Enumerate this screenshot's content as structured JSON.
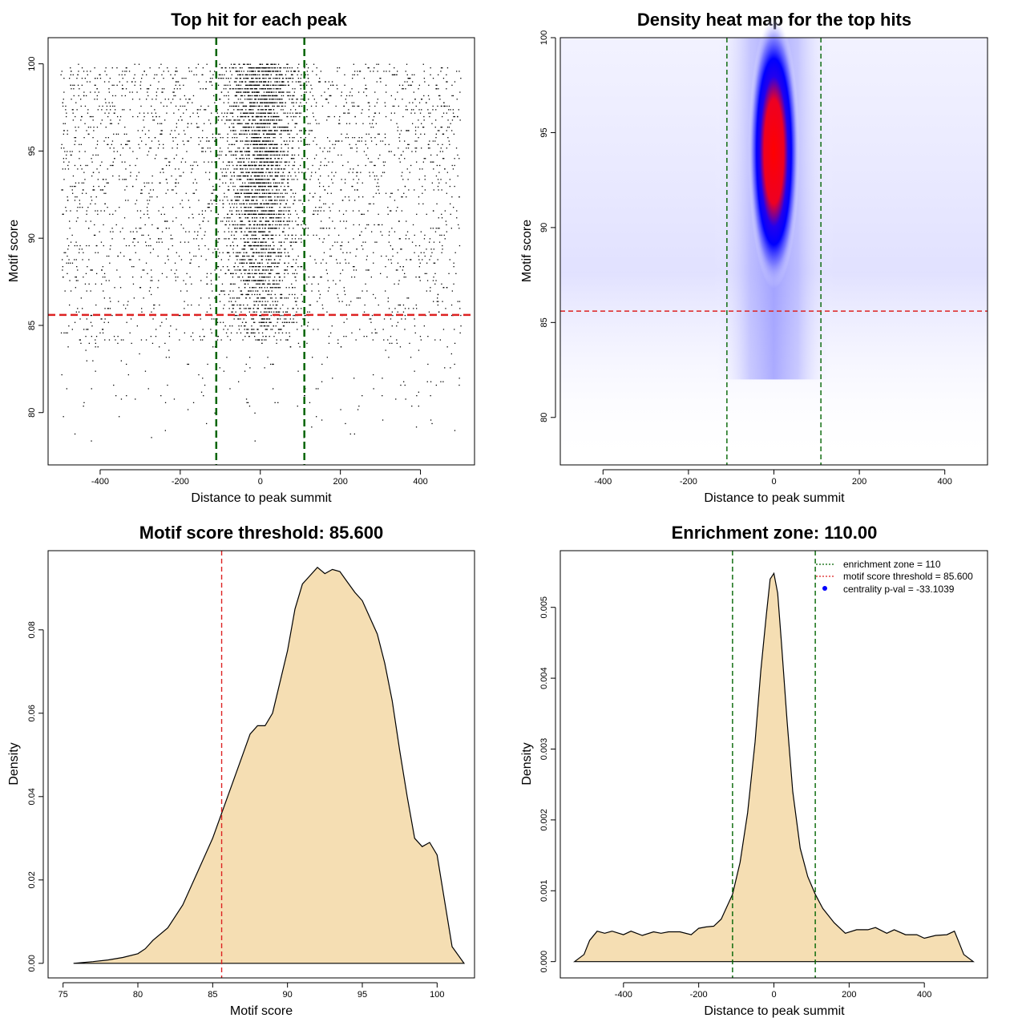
{
  "chart_data": [
    {
      "type": "scatter",
      "title": "Top hit for each peak",
      "xlabel": "Distance to peak summit",
      "ylabel": "Motif score",
      "xlim": [
        -530,
        535
      ],
      "ylim": [
        77,
        101.5
      ],
      "xticks": [
        -400,
        -200,
        0,
        200,
        400
      ],
      "yticks": [
        80,
        85,
        90,
        95,
        100
      ],
      "xtick_labels": [
        "-400",
        "-200",
        "0",
        "200",
        "400"
      ],
      "ytick_labels": [
        "80",
        "85",
        "90",
        "95",
        "100"
      ],
      "points": {
        "count": 6000,
        "background_x_range": [
          -500,
          500
        ],
        "background_y_range": [
          78,
          100
        ],
        "central_x_center": 0,
        "central_x_sd": 45,
        "central_y_range": [
          84,
          100
        ],
        "color": "#000000"
      },
      "vlines": [
        -110,
        110
      ],
      "vline_color": "#006400",
      "hline": 85.6,
      "hline_color": "#dd2222"
    },
    {
      "type": "heatmap",
      "title": "Density heat map for the top hits",
      "xlabel": "Distance to peak summit",
      "ylabel": "Motif score",
      "xlim": [
        -500,
        500
      ],
      "ylim": [
        77.5,
        100
      ],
      "xticks": [
        -400,
        -200,
        0,
        200,
        400
      ],
      "yticks": [
        80,
        85,
        90,
        95,
        100
      ],
      "xtick_labels": [
        "-400",
        "-200",
        "0",
        "200",
        "400"
      ],
      "ytick_labels": [
        "80",
        "85",
        "90",
        "95",
        "100"
      ],
      "hotspot": {
        "x": 0,
        "y": 94,
        "x_spread": 60,
        "y_spread_low": 6,
        "y_spread_high": 4
      },
      "colors": [
        "#ffffff",
        "#0000ff",
        "#ff0000"
      ],
      "vlines": [
        -110,
        110
      ],
      "vline_color": "#006400",
      "hline": 85.6,
      "hline_color": "#dd2222"
    },
    {
      "type": "area",
      "title": "Motif score threshold: 85.600",
      "xlabel": "Motif score",
      "ylabel": "Density",
      "xlim": [
        74,
        102.5
      ],
      "ylim": [
        -0.0035,
        0.099
      ],
      "xticks": [
        75,
        80,
        85,
        90,
        95,
        100
      ],
      "yticks": [
        0,
        0.02,
        0.04,
        0.06,
        0.08
      ],
      "xtick_labels": [
        "75",
        "80",
        "85",
        "90",
        "95",
        "100"
      ],
      "ytick_labels": [
        "0.00",
        "0.02",
        "0.04",
        "0.06",
        "0.08"
      ],
      "x": [
        75.7,
        77,
        78,
        79,
        80,
        80.5,
        81,
        82,
        83,
        84,
        85,
        86,
        87,
        87.5,
        88,
        88.5,
        89,
        90,
        90.5,
        91,
        92,
        92.5,
        93,
        93.5,
        94,
        94.5,
        95,
        96,
        96.5,
        97,
        97.5,
        98,
        98.5,
        99,
        99.5,
        100,
        101,
        101.8
      ],
      "y": [
        0,
        0.0004,
        0.0008,
        0.0014,
        0.0023,
        0.0035,
        0.0055,
        0.0085,
        0.014,
        0.022,
        0.03,
        0.04,
        0.05,
        0.055,
        0.057,
        0.057,
        0.06,
        0.075,
        0.085,
        0.091,
        0.095,
        0.0935,
        0.0945,
        0.094,
        0.0915,
        0.089,
        0.087,
        0.079,
        0.072,
        0.063,
        0.051,
        0.04,
        0.03,
        0.028,
        0.029,
        0.026,
        0.004,
        0
      ],
      "fill": "#f5deb3",
      "vlines": [
        85.6
      ],
      "vline_color": "#dd2222"
    },
    {
      "type": "area",
      "title": "Enrichment zone: 110.00",
      "xlabel": "Distance to peak summit",
      "ylabel": "Density",
      "xlim": [
        -568,
        568
      ],
      "ylim": [
        -0.00023,
        0.0058
      ],
      "xticks": [
        -400,
        -200,
        0,
        200,
        400
      ],
      "yticks": [
        0,
        0.001,
        0.002,
        0.003,
        0.004,
        0.005
      ],
      "xtick_labels": [
        "-400",
        "-200",
        "0",
        "200",
        "400"
      ],
      "ytick_labels": [
        "0.000",
        "0.001",
        "0.002",
        "0.003",
        "0.004",
        "0.005"
      ],
      "x": [
        -530,
        -505,
        -490,
        -470,
        -450,
        -430,
        -400,
        -380,
        -350,
        -320,
        -300,
        -280,
        -250,
        -220,
        -200,
        -180,
        -160,
        -140,
        -110,
        -90,
        -70,
        -50,
        -35,
        -20,
        -10,
        0,
        10,
        20,
        35,
        50,
        70,
        90,
        110,
        130,
        160,
        190,
        220,
        250,
        270,
        300,
        320,
        350,
        380,
        400,
        430,
        460,
        480,
        490,
        505,
        530
      ],
      "y": [
        0,
        0.0001,
        0.0003,
        0.00043,
        0.0004,
        0.00043,
        0.00038,
        0.00043,
        0.00037,
        0.00042,
        0.0004,
        0.00042,
        0.00042,
        0.00038,
        0.00047,
        0.00049,
        0.0005,
        0.0006,
        0.00095,
        0.0014,
        0.0021,
        0.0031,
        0.0041,
        0.0049,
        0.0054,
        0.00548,
        0.0052,
        0.0045,
        0.0034,
        0.0024,
        0.0016,
        0.0012,
        0.00095,
        0.00075,
        0.00055,
        0.0004,
        0.00045,
        0.00045,
        0.00048,
        0.0004,
        0.00045,
        0.00038,
        0.00038,
        0.00033,
        0.00037,
        0.00038,
        0.00043,
        0.0003,
        0.0001,
        0
      ],
      "fill": "#f5deb3",
      "vlines": [
        -110,
        110
      ],
      "vline_color": "#006400",
      "legend": {
        "placement": "top-right",
        "entries": [
          {
            "label": "enrichment zone = 110",
            "kind": "line",
            "color": "#006400"
          },
          {
            "label": "motif score threshold = 85.600",
            "kind": "line",
            "color": "#dd2222"
          },
          {
            "label": "centrality p-val = -33.1039",
            "kind": "point",
            "color": "#0000ff"
          }
        ]
      }
    }
  ]
}
